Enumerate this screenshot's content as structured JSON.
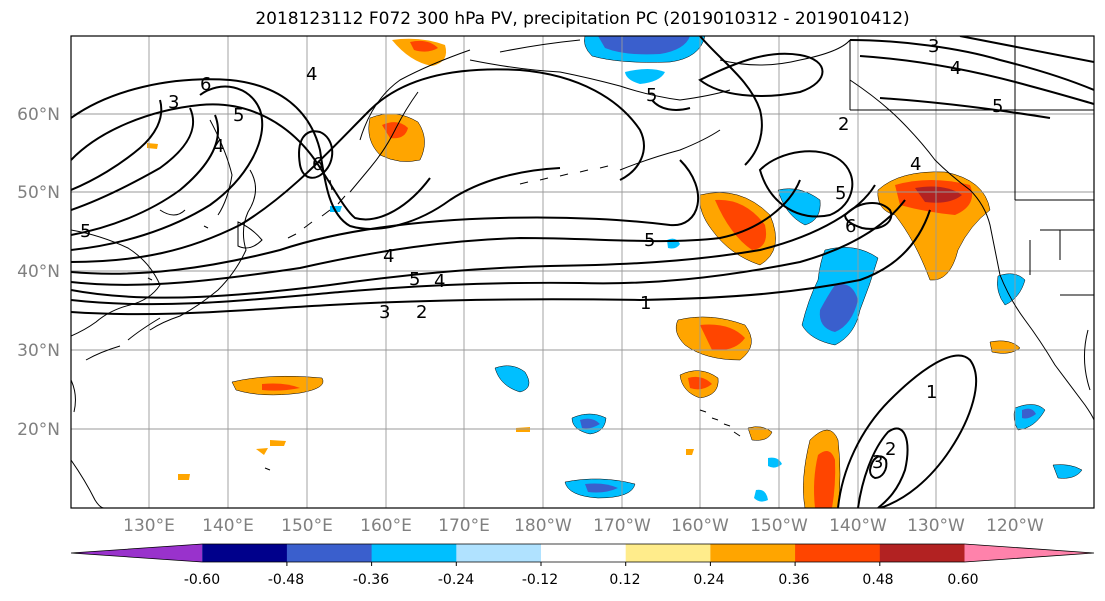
{
  "title": "2018123112 F072 300 hPa PV, precipitation PC (2019010312 - 2019010412)",
  "map": {
    "lat_labels": [
      "60°N",
      "50°N",
      "40°N",
      "30°N",
      "20°N"
    ],
    "lon_labels": [
      "130°E",
      "140°E",
      "150°E",
      "160°E",
      "170°E",
      "180°W",
      "170°W",
      "160°W",
      "150°W",
      "140°W",
      "130°W",
      "120°W"
    ],
    "contour_labels": [
      "1",
      "2",
      "3",
      "4",
      "5",
      "6"
    ]
  },
  "colorbar": {
    "ticks": [
      "-0.60",
      "-0.48",
      "-0.36",
      "-0.24",
      "-0.12",
      "0.12",
      "0.24",
      "0.36",
      "0.48",
      "0.60"
    ],
    "colors": [
      "#9932cc",
      "#00008b",
      "#3a5fcd",
      "#00bfff",
      "#b0e2ff",
      "#ffffff",
      "#ffec8b",
      "#ffa500",
      "#ff4500",
      "#b22222",
      "#ff82ab"
    ]
  }
}
